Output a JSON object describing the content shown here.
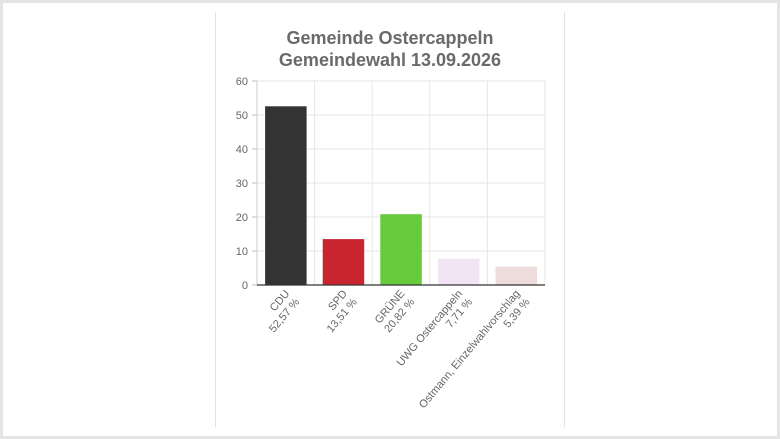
{
  "chart_data": {
    "type": "bar",
    "title": [
      "Gemeinde Ostercappeln",
      "Gemeindewahl 13.09.2026"
    ],
    "categories": [
      "CDU",
      "SPD",
      "GRÜNE",
      "UWG Ostercappeln",
      "Ostmann, Einzelwahlvorschlag"
    ],
    "category_labels": [
      "52,57 %",
      "13,51 %",
      "20,82 %",
      "7,71 %",
      "5,39 %"
    ],
    "values": [
      52.57,
      13.51,
      20.82,
      7.71,
      5.39
    ],
    "colors": [
      "#333333",
      "#c8252f",
      "#66cc3d",
      "#f2e4f4",
      "#ecdcdb"
    ],
    "ylim": [
      0,
      60
    ],
    "yticks": [
      0,
      10,
      20,
      30,
      40,
      50,
      60
    ],
    "grid": true,
    "legend": "none"
  }
}
